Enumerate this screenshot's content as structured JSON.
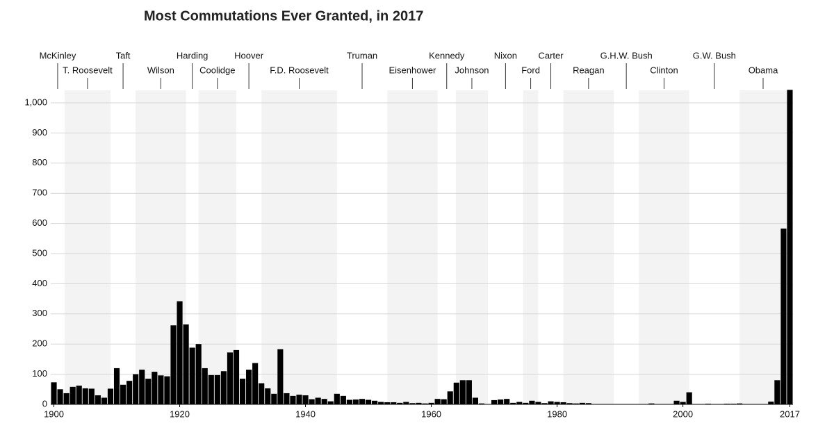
{
  "chart_data": {
    "type": "bar",
    "title": "Most Commutations Ever Granted, in 2017",
    "x": [
      1900,
      1901,
      1902,
      1903,
      1904,
      1905,
      1906,
      1907,
      1908,
      1909,
      1910,
      1911,
      1912,
      1913,
      1914,
      1915,
      1916,
      1917,
      1918,
      1919,
      1920,
      1921,
      1922,
      1923,
      1924,
      1925,
      1926,
      1927,
      1928,
      1929,
      1930,
      1931,
      1932,
      1933,
      1934,
      1935,
      1936,
      1937,
      1938,
      1939,
      1940,
      1941,
      1942,
      1943,
      1944,
      1945,
      1946,
      1947,
      1948,
      1949,
      1950,
      1951,
      1952,
      1953,
      1954,
      1955,
      1956,
      1957,
      1958,
      1959,
      1960,
      1961,
      1962,
      1963,
      1964,
      1965,
      1966,
      1967,
      1968,
      1969,
      1970,
      1971,
      1972,
      1973,
      1974,
      1975,
      1976,
      1977,
      1978,
      1979,
      1980,
      1981,
      1982,
      1983,
      1984,
      1985,
      1986,
      1987,
      1988,
      1989,
      1990,
      1991,
      1992,
      1993,
      1994,
      1995,
      1996,
      1997,
      1998,
      1999,
      2000,
      2001,
      2002,
      2003,
      2004,
      2005,
      2006,
      2007,
      2008,
      2009,
      2010,
      2011,
      2012,
      2013,
      2014,
      2015,
      2016,
      2017
    ],
    "values": [
      73,
      50,
      37,
      58,
      62,
      53,
      52,
      30,
      22,
      52,
      120,
      65,
      78,
      100,
      115,
      85,
      108,
      96,
      93,
      262,
      342,
      265,
      188,
      200,
      120,
      97,
      97,
      110,
      172,
      180,
      85,
      115,
      137,
      70,
      53,
      35,
      183,
      37,
      28,
      32,
      30,
      17,
      22,
      18,
      10,
      35,
      28,
      15,
      16,
      18,
      15,
      12,
      8,
      7,
      7,
      5,
      8,
      4,
      5,
      3,
      5,
      18,
      17,
      43,
      72,
      80,
      80,
      22,
      3,
      0,
      14,
      16,
      18,
      5,
      8,
      5,
      12,
      8,
      4,
      10,
      8,
      7,
      4,
      3,
      5,
      4,
      0,
      0,
      1,
      0,
      0,
      0,
      0,
      1,
      0,
      3,
      0,
      0,
      0,
      12,
      8,
      40,
      0,
      0,
      2,
      0,
      0,
      2,
      2,
      3,
      0,
      1,
      1,
      0,
      9,
      80,
      583,
      1043
    ],
    "color": "#000000",
    "xlim": [
      1899.5,
      2017.5
    ],
    "xticks": [
      1900,
      1920,
      1940,
      1960,
      1980,
      2000,
      2017
    ],
    "ylim": [
      0,
      1000
    ],
    "yticks": [
      0,
      100,
      200,
      300,
      400,
      500,
      600,
      700,
      800,
      900,
      {
        "value": 1000,
        "label": "1,000"
      }
    ],
    "grid": true,
    "presidents": [
      {
        "name": "McKinley",
        "start": 1899.5,
        "end": 1901.7
      },
      {
        "name": "T. Roosevelt",
        "start": 1901.7,
        "end": 1909
      },
      {
        "name": "Taft",
        "start": 1909,
        "end": 1913
      },
      {
        "name": "Wilson",
        "start": 1913,
        "end": 1921
      },
      {
        "name": "Harding",
        "start": 1921,
        "end": 1923
      },
      {
        "name": "Coolidge",
        "start": 1923,
        "end": 1929
      },
      {
        "name": "Hoover",
        "start": 1929,
        "end": 1933
      },
      {
        "name": "F.D. Roosevelt",
        "start": 1933,
        "end": 1945
      },
      {
        "name": "Truman",
        "start": 1945,
        "end": 1953
      },
      {
        "name": "Eisenhower",
        "start": 1953,
        "end": 1961
      },
      {
        "name": "Kennedy",
        "start": 1961,
        "end": 1963.9
      },
      {
        "name": "Johnson",
        "start": 1963.9,
        "end": 1969
      },
      {
        "name": "Nixon",
        "start": 1969,
        "end": 1974.6
      },
      {
        "name": "Ford",
        "start": 1974.6,
        "end": 1977
      },
      {
        "name": "Carter",
        "start": 1977,
        "end": 1981
      },
      {
        "name": "Reagan",
        "start": 1981,
        "end": 1989
      },
      {
        "name": "G.H.W. Bush",
        "start": 1989,
        "end": 1993
      },
      {
        "name": "Clinton",
        "start": 1993,
        "end": 2001
      },
      {
        "name": "G.W. Bush",
        "start": 2001,
        "end": 2009
      },
      {
        "name": "Obama",
        "start": 2009,
        "end": 2016.5
      }
    ]
  }
}
